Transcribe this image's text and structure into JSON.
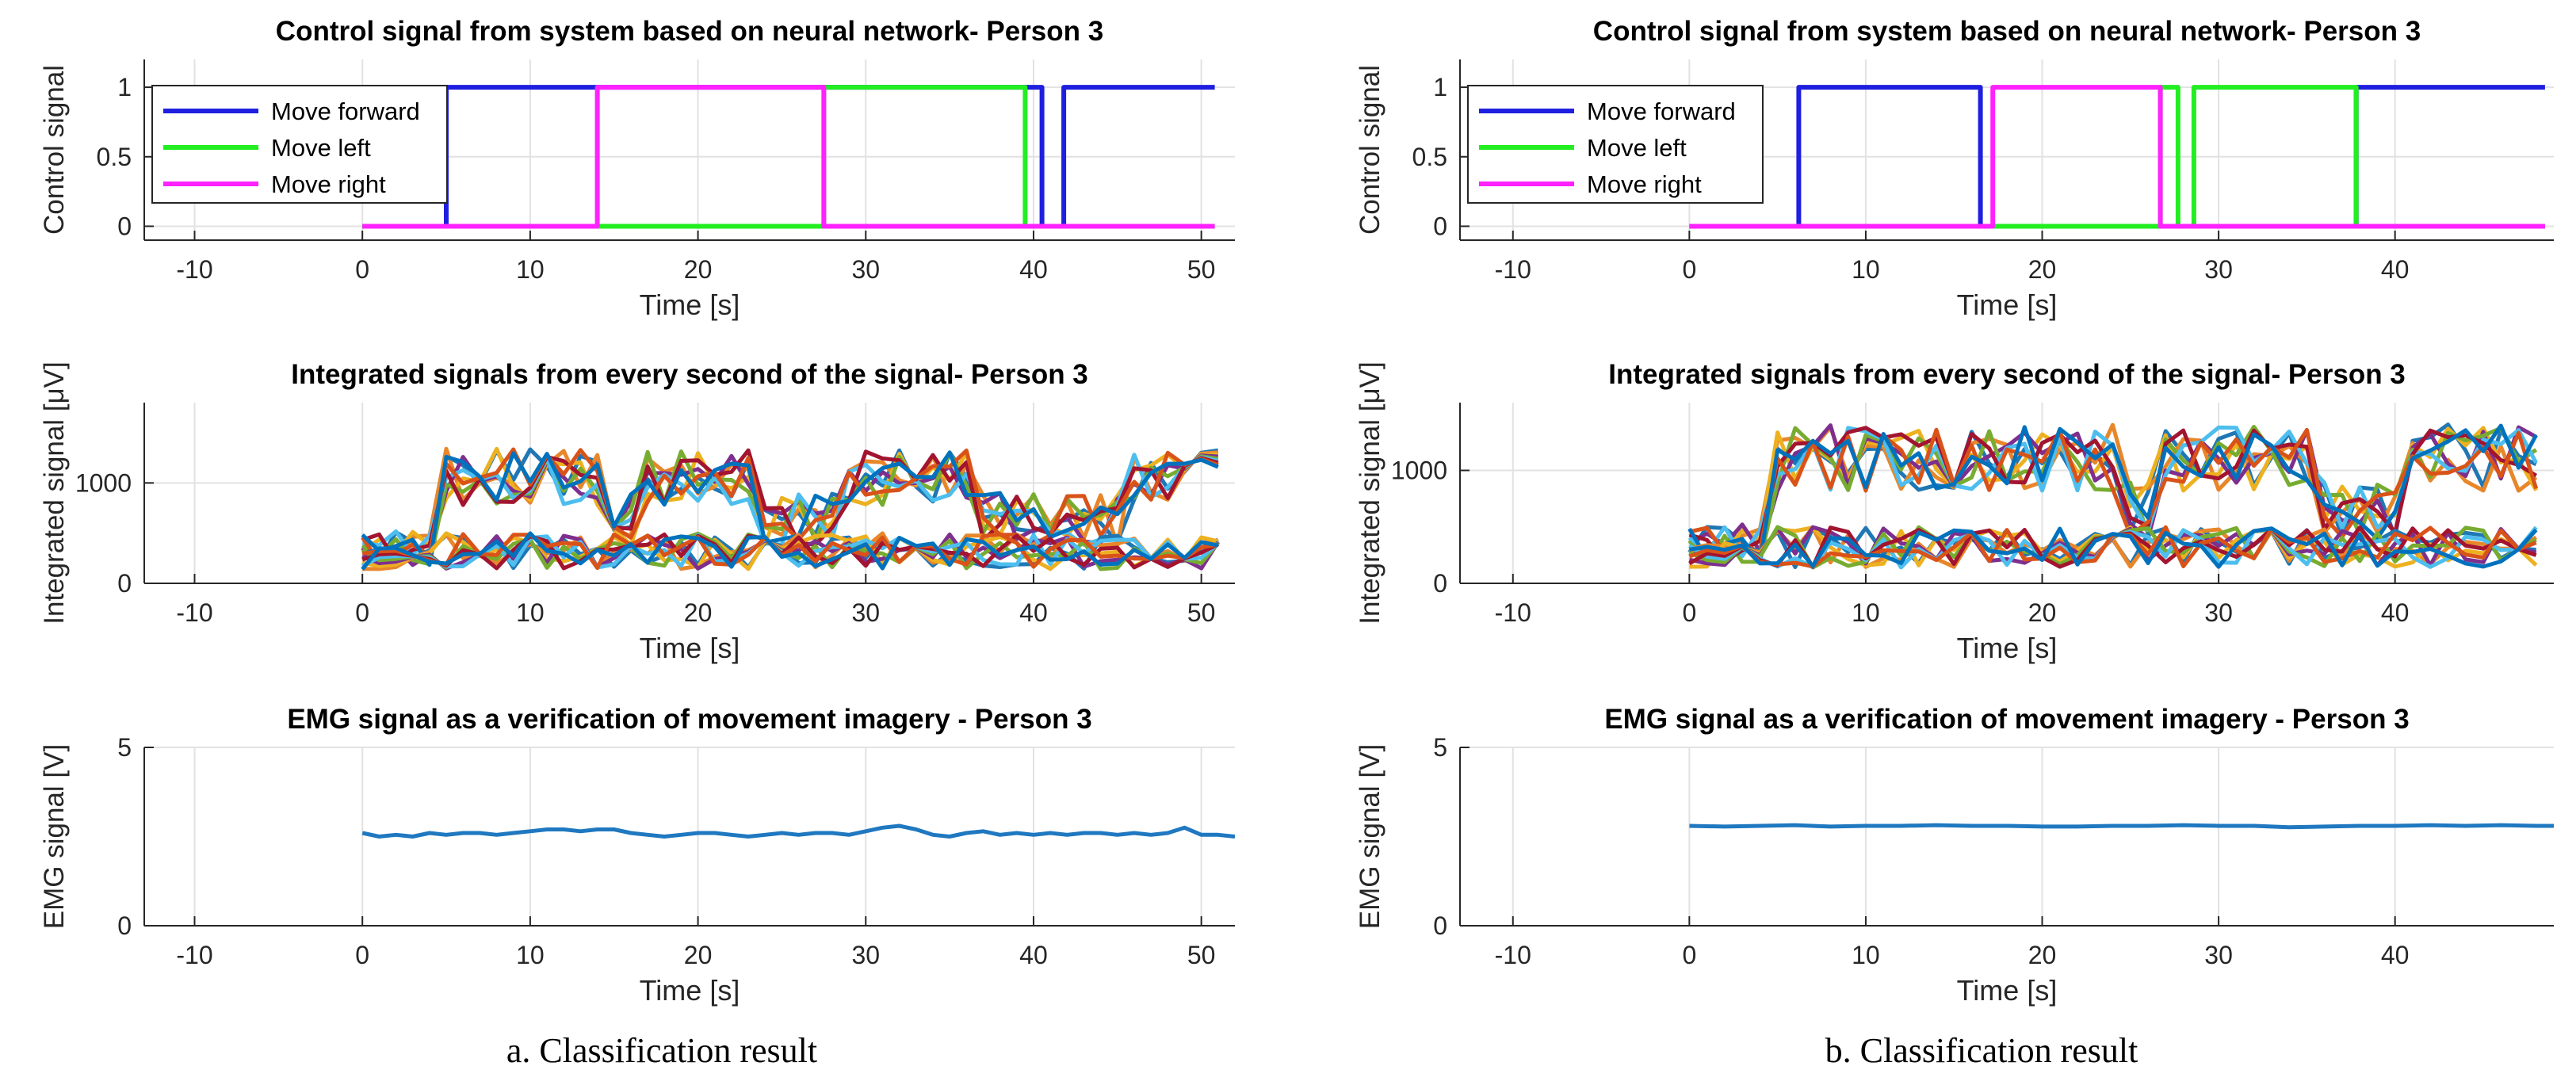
{
  "captions": {
    "a": "a. Classification result",
    "b": "b. Classification result"
  },
  "colors": {
    "forward": "#1f1fe0",
    "left": "#22ee22",
    "right": "#ff22ff",
    "emg": "#1f78c0",
    "palette": [
      "#1f77b4",
      "#e8862a",
      "#edb120",
      "#7e2f8e",
      "#77ac30",
      "#4dbeee",
      "#a2142f",
      "#d95319",
      "#0072bd"
    ]
  },
  "chart_data": [
    {
      "id": "a-control",
      "type": "line",
      "title": "Control signal from system based on neural network- Person 3",
      "xlabel": "Time [s]",
      "ylabel": "Control signal",
      "xlim": [
        -13,
        52
      ],
      "ylim": [
        -0.1,
        1.2
      ],
      "xticks": [
        -10,
        0,
        10,
        20,
        30,
        40,
        50
      ],
      "yticks": [
        0,
        0.5,
        1
      ],
      "grid": true,
      "legend_position": "top-left",
      "series": [
        {
          "name": "Move forward",
          "color_key": "forward",
          "x": [
            0,
            5,
            5,
            40.5,
            40.5,
            41.8,
            41.8,
            50.8
          ],
          "y": [
            0,
            0,
            1,
            1,
            0,
            0,
            1,
            1
          ]
        },
        {
          "name": "Move left",
          "color_key": "left",
          "x": [
            0,
            27.5,
            27.5,
            39.5,
            39.5,
            50.8
          ],
          "y": [
            0,
            0,
            1,
            1,
            0,
            0
          ]
        },
        {
          "name": "Move right",
          "color_key": "right",
          "x": [
            0,
            14,
            14,
            27.5,
            27.5,
            50.8
          ],
          "y": [
            0,
            0,
            1,
            1,
            0,
            0
          ]
        }
      ]
    },
    {
      "id": "a-integrated",
      "type": "line",
      "title": "Integrated signals from every second of the signal- Person 3",
      "xlabel": "Time [s]",
      "ylabel": "Integrated signal [μV]",
      "xlim": [
        -13,
        52
      ],
      "ylim": [
        0,
        1800
      ],
      "xticks": [
        -10,
        0,
        10,
        20,
        30,
        40,
        50
      ],
      "yticks": [
        0,
        1000
      ],
      "grid": true,
      "series_count": 18,
      "duration": 51,
      "peak_scale": 1,
      "peak_windows": [
        [
          5,
          14
        ],
        [
          17,
          23
        ],
        [
          29,
          36
        ],
        [
          46,
          51
        ]
      ]
    },
    {
      "id": "a-emg",
      "type": "line",
      "title": "EMG signal as a verification of movement imagery - Person 3",
      "xlabel": "Time [s]",
      "ylabel": "EMG signal [V]",
      "xlim": [
        -13,
        52
      ],
      "ylim": [
        0,
        5
      ],
      "xticks": [
        -10,
        0,
        10,
        20,
        30,
        40,
        50
      ],
      "yticks": [
        0,
        5
      ],
      "grid": true,
      "series": [
        {
          "name": "EMG",
          "color_key": "emg",
          "x": [
            0,
            1,
            2,
            3,
            4,
            5,
            6,
            7,
            8,
            9,
            10,
            11,
            12,
            13,
            14,
            15,
            16,
            17,
            18,
            19,
            20,
            21,
            22,
            23,
            24,
            25,
            26,
            27,
            28,
            29,
            30,
            31,
            32,
            33,
            34,
            35,
            36,
            37,
            38,
            39,
            40,
            41,
            42,
            43,
            44,
            45,
            46,
            47,
            48,
            49,
            50,
            51,
            52
          ],
          "y": [
            2.6,
            2.5,
            2.55,
            2.5,
            2.6,
            2.55,
            2.6,
            2.6,
            2.55,
            2.6,
            2.65,
            2.7,
            2.7,
            2.65,
            2.7,
            2.7,
            2.6,
            2.55,
            2.5,
            2.55,
            2.6,
            2.6,
            2.55,
            2.5,
            2.55,
            2.6,
            2.55,
            2.6,
            2.6,
            2.55,
            2.65,
            2.75,
            2.8,
            2.7,
            2.55,
            2.5,
            2.6,
            2.65,
            2.55,
            2.6,
            2.55,
            2.6,
            2.55,
            2.6,
            2.6,
            2.55,
            2.6,
            2.55,
            2.6,
            2.75,
            2.55,
            2.55,
            2.5
          ]
        }
      ]
    },
    {
      "id": "b-control",
      "type": "line",
      "title": "Control signal from system based on neural network- Person 3",
      "xlabel": "Time [s]",
      "ylabel": "Control signal",
      "xlim": [
        -13,
        49
      ],
      "ylim": [
        -0.1,
        1.2
      ],
      "xticks": [
        -10,
        0,
        10,
        20,
        30,
        40
      ],
      "yticks": [
        0,
        0.5,
        1
      ],
      "grid": true,
      "legend_position": "top-left",
      "series": [
        {
          "name": "Move forward",
          "color_key": "forward",
          "x": [
            0,
            6.2,
            6.2,
            16.5,
            16.5,
            37.8,
            37.8,
            48.5
          ],
          "y": [
            0,
            0,
            1,
            1,
            0,
            0,
            1,
            1
          ]
        },
        {
          "name": "Move left",
          "color_key": "left",
          "x": [
            0,
            26.7,
            26.7,
            27.7,
            27.7,
            28.6,
            28.6,
            37.8,
            37.8,
            48.5
          ],
          "y": [
            0,
            0,
            1,
            1,
            0,
            0,
            1,
            1,
            0,
            0
          ]
        },
        {
          "name": "Move right",
          "color_key": "right",
          "x": [
            0,
            17.2,
            17.2,
            26.7,
            26.7,
            48.5
          ],
          "y": [
            0,
            0,
            1,
            1,
            0,
            0
          ]
        }
      ]
    },
    {
      "id": "b-integrated",
      "type": "line",
      "title": "Integrated signals from every second of the signal- Person 3",
      "xlabel": "Time [s]",
      "ylabel": "Integrated signal [μV]",
      "xlim": [
        -13,
        49
      ],
      "ylim": [
        0,
        1600
      ],
      "xticks": [
        -10,
        0,
        10,
        20,
        30,
        40
      ],
      "yticks": [
        0,
        1000
      ],
      "grid": true,
      "series_count": 18,
      "duration": 48,
      "peak_scale": 1.05,
      "peak_windows": [
        [
          5,
          14
        ],
        [
          16,
          24
        ],
        [
          27,
          35
        ],
        [
          41,
          48
        ]
      ]
    },
    {
      "id": "b-emg",
      "type": "line",
      "title": "EMG signal as a verification of movement imagery - Person 3",
      "xlabel": "Time [s]",
      "ylabel": "EMG signal [V]",
      "xlim": [
        -13,
        49
      ],
      "ylim": [
        0,
        5
      ],
      "xticks": [
        -10,
        0,
        10,
        20,
        30,
        40
      ],
      "yticks": [
        0,
        5
      ],
      "grid": true,
      "series": [
        {
          "name": "EMG",
          "color_key": "emg",
          "x": [
            0,
            2,
            4,
            6,
            8,
            10,
            12,
            14,
            16,
            18,
            20,
            22,
            24,
            26,
            28,
            30,
            32,
            34,
            36,
            38,
            40,
            42,
            44,
            46,
            48,
            49
          ],
          "y": [
            2.8,
            2.78,
            2.8,
            2.82,
            2.78,
            2.8,
            2.8,
            2.82,
            2.8,
            2.8,
            2.78,
            2.78,
            2.8,
            2.8,
            2.82,
            2.8,
            2.8,
            2.76,
            2.78,
            2.8,
            2.8,
            2.82,
            2.8,
            2.82,
            2.8,
            2.8
          ]
        }
      ]
    }
  ]
}
